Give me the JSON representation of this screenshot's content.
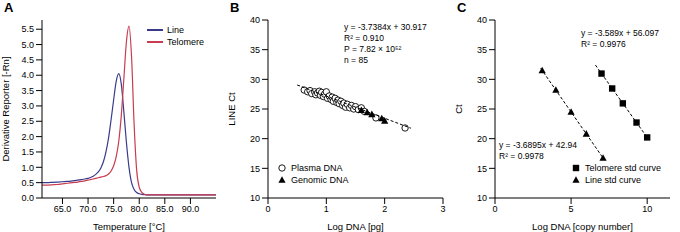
{
  "chart_data": [
    {
      "type": "line",
      "title": "A",
      "x_label": "Temperature [°C]",
      "y_label": "Derivative Reporter [-Rn]",
      "xlim": [
        61,
        95
      ],
      "xticks": [
        {
          "value": 65,
          "label": "65.0"
        },
        {
          "value": 70,
          "label": "70.0"
        },
        {
          "value": 75,
          "label": "75.0"
        },
        {
          "value": 80,
          "label": "80.0"
        },
        {
          "value": 85,
          "label": "85.0"
        },
        {
          "value": 90,
          "label": "90.0"
        }
      ],
      "ylim": [
        0,
        5.8
      ],
      "yticks": [
        {
          "value": 0,
          "label": "0.0"
        },
        0.5,
        {
          "value": 1,
          "label": "1.0"
        },
        1.5,
        {
          "value": 2,
          "label": "2.0"
        },
        2.5,
        {
          "value": 3,
          "label": "3.0"
        },
        3.5,
        {
          "value": 4,
          "label": "4.0"
        },
        4.5,
        {
          "value": 5,
          "label": "5.0"
        },
        5.5
      ],
      "legend": "upper right",
      "x": [
        61,
        62,
        63,
        64,
        65,
        66,
        67,
        68,
        69,
        70,
        70.5,
        71,
        71.5,
        72,
        72.5,
        73,
        73.5,
        74,
        74.5,
        75,
        75.5,
        76,
        76.5,
        77,
        77.5,
        78,
        78.5,
        79,
        79.5,
        80,
        80.5,
        81,
        81.5,
        82,
        83,
        84,
        85,
        86,
        87,
        88,
        89,
        90,
        91,
        92,
        93,
        94,
        95
      ],
      "series": [
        {
          "name": "Line",
          "color": "#3a3a8c",
          "values": [
            0.5,
            0.5,
            0.51,
            0.52,
            0.53,
            0.54,
            0.56,
            0.58,
            0.61,
            0.64,
            0.67,
            0.71,
            0.77,
            0.85,
            0.98,
            1.18,
            1.5,
            1.95,
            2.55,
            3.2,
            3.8,
            4.05,
            3.7,
            2.8,
            1.8,
            1.0,
            0.5,
            0.28,
            0.18,
            0.14,
            0.12,
            0.11,
            0.1,
            0.1,
            0.1,
            0.1,
            0.1,
            0.1,
            0.1,
            0.1,
            0.1,
            0.1,
            0.1,
            0.1,
            0.1,
            0.1,
            0.1
          ]
        },
        {
          "name": "Telomere",
          "color": "#c83c50",
          "values": [
            0.42,
            0.42,
            0.43,
            0.44,
            0.46,
            0.48,
            0.5,
            0.52,
            0.55,
            0.58,
            0.6,
            0.62,
            0.64,
            0.66,
            0.68,
            0.7,
            0.73,
            0.78,
            0.88,
            1.05,
            1.35,
            1.85,
            2.7,
            3.9,
            5.1,
            5.6,
            4.6,
            2.4,
            0.9,
            0.35,
            0.18,
            0.12,
            0.1,
            0.1,
            0.1,
            0.1,
            0.1,
            0.1,
            0.1,
            0.1,
            0.1,
            0.1,
            0.1,
            0.1,
            0.1,
            0.1,
            0.1
          ]
        }
      ]
    },
    {
      "type": "scatter",
      "title": "B",
      "x_label": "Log DNA [pg]",
      "y_label": "LINE Ct",
      "xlim": [
        0,
        3
      ],
      "xticks": [
        0,
        1,
        2,
        3
      ],
      "ylim": [
        10,
        40
      ],
      "yticks": [
        10,
        15,
        20,
        25,
        30,
        35,
        40
      ],
      "legend": "lower left",
      "annotations": [
        "y = -3.7384x + 30.917",
        "R² = 0.910",
        "P = 7.82 × 10⁵²",
        "n = 85"
      ],
      "series": [
        {
          "name": "Plasma DNA",
          "color": "#000000",
          "marker": "circle_open",
          "x": [
            0.62,
            0.68,
            0.72,
            0.75,
            0.8,
            0.82,
            0.85,
            0.88,
            0.9,
            0.92,
            0.95,
            0.97,
            1.0,
            1.02,
            1.05,
            1.08,
            1.1,
            1.12,
            1.15,
            1.18,
            1.2,
            1.22,
            1.25,
            1.28,
            1.3,
            1.33,
            1.36,
            1.4,
            1.43,
            1.47,
            1.5,
            1.55,
            1.6,
            1.65,
            1.85,
            2.35
          ],
          "values": [
            28.2,
            27.9,
            28.1,
            27.6,
            27.9,
            27.4,
            27.7,
            28.0,
            27.3,
            27.8,
            27.1,
            27.5,
            27.9,
            26.8,
            27.2,
            26.6,
            27.0,
            26.3,
            26.8,
            26.1,
            26.5,
            25.9,
            26.3,
            25.6,
            26.0,
            25.3,
            25.8,
            25.2,
            25.6,
            25.0,
            25.4,
            24.9,
            25.2,
            24.6,
            23.5,
            21.8
          ]
        },
        {
          "name": "Genomic DNA",
          "color": "#000000",
          "marker": "triangle",
          "x": [
            1.6,
            1.7,
            1.78,
            1.95,
            2.0
          ],
          "values": [
            24.8,
            24.4,
            24.1,
            23.4,
            23.0
          ]
        },
        {
          "type": "line",
          "line_style": "dashed",
          "color": "#000000",
          "x": [
            0.5,
            2.45
          ],
          "values": [
            29.05,
            21.76
          ]
        }
      ]
    },
    {
      "type": "scatter",
      "title": "C",
      "x_label": "Log DNA [copy number]",
      "y_label": "Ct",
      "xlim": [
        0,
        11.5
      ],
      "xticks": [
        0,
        5,
        10
      ],
      "ylim": [
        10,
        40
      ],
      "yticks": [
        10,
        15,
        20,
        25,
        30,
        35,
        40
      ],
      "legend": "lower right",
      "annotations": [
        "y = -3.589x + 56.097",
        "R² = 0.9976",
        "y = -3.6895x + 42.94",
        "R² = 0.9978"
      ],
      "series": [
        {
          "name": "Telomere std curve",
          "color": "#000000",
          "marker": "square",
          "x": [
            7,
            7.7,
            8.4,
            9.3,
            10
          ],
          "values": [
            30.97,
            28.46,
            25.95,
            22.72,
            20.21
          ]
        },
        {
          "name": "Line std curve",
          "color": "#000000",
          "marker": "triangle",
          "x": [
            3.1,
            4,
            5,
            6,
            7.1
          ],
          "values": [
            31.5,
            28.2,
            24.5,
            20.8,
            16.75
          ]
        },
        {
          "type": "line",
          "line_style": "dashed",
          "color": "#000000",
          "x": [
            6.6,
            10.1
          ],
          "values": [
            32.41,
            19.85
          ]
        },
        {
          "type": "line",
          "line_style": "dashed",
          "color": "#000000",
          "x": [
            3.0,
            7.2
          ],
          "values": [
            31.87,
            16.38
          ]
        }
      ]
    }
  ]
}
